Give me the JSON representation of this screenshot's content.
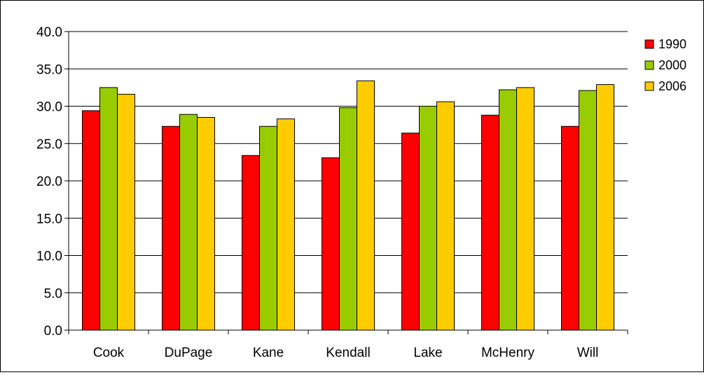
{
  "chart_data": {
    "type": "bar",
    "title": "",
    "xlabel": "",
    "ylabel": "",
    "categories": [
      "Cook",
      "DuPage",
      "Kane",
      "Kendall",
      "Lake",
      "McHenry",
      "Will"
    ],
    "series": [
      {
        "name": "1990",
        "color": "#ff0000",
        "values": [
          29.4,
          27.3,
          23.4,
          23.1,
          26.4,
          28.8,
          27.3
        ]
      },
      {
        "name": "2000",
        "color": "#99cc00",
        "values": [
          32.5,
          28.9,
          27.3,
          29.8,
          30.0,
          32.2,
          32.1
        ]
      },
      {
        "name": "2006",
        "color": "#ffcc00",
        "values": [
          31.6,
          28.5,
          28.3,
          33.4,
          30.6,
          32.5,
          32.9
        ]
      }
    ],
    "ylim": [
      0,
      40
    ],
    "yticks": [
      "0.0",
      "5.0",
      "10.0",
      "15.0",
      "20.0",
      "25.0",
      "30.0",
      "35.0",
      "40.0"
    ],
    "grid": true,
    "legend_position": "right"
  }
}
